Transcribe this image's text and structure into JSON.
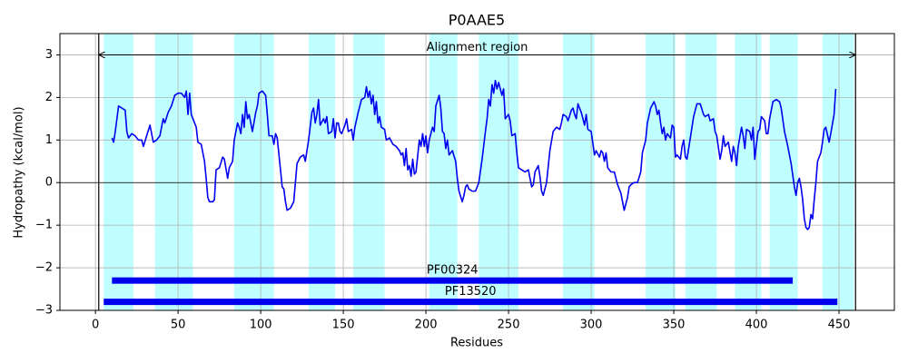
{
  "chart_data": {
    "type": "line",
    "title": "P0AAE5",
    "xlabel": "Residues",
    "ylabel": "Hydropathy (kcal/mol)",
    "xlim": [
      -21.5,
      483.5
    ],
    "ylim": [
      -3,
      3.5
    ],
    "xticks": [
      0,
      50,
      100,
      150,
      200,
      250,
      300,
      350,
      400,
      450
    ],
    "yticks": [
      {
        "value": -3,
        "label": "−3"
      },
      {
        "value": -2,
        "label": "−2"
      },
      {
        "value": -1,
        "label": "−1"
      },
      0,
      1,
      2,
      3
    ],
    "grid": true,
    "hline": 0,
    "line_color": "#0000ee",
    "x": [
      10,
      11,
      12,
      13,
      14,
      16,
      18,
      19,
      20,
      22,
      24,
      26,
      28,
      29,
      31,
      33,
      35,
      37,
      39,
      41,
      42,
      44,
      46,
      48,
      50,
      52,
      54,
      55,
      56,
      57,
      58,
      59,
      61,
      62,
      64,
      66,
      67,
      68,
      69,
      71,
      72,
      73,
      75,
      77,
      78,
      80,
      81,
      83,
      84,
      86,
      87,
      88,
      89,
      90,
      91,
      92,
      93,
      94,
      95,
      97,
      98,
      99,
      101,
      103,
      104,
      105,
      107,
      108,
      109,
      110,
      112,
      113,
      114,
      115,
      116,
      118,
      120,
      122,
      124,
      126,
      127,
      129,
      131,
      132,
      133,
      134,
      135,
      136,
      138,
      139,
      140,
      141,
      143,
      144,
      145,
      146,
      147,
      148,
      149,
      151,
      152,
      153,
      155,
      156,
      157,
      159,
      161,
      163,
      164,
      165,
      166,
      167,
      168,
      169,
      170,
      171,
      172,
      173,
      175,
      176,
      178,
      180,
      182,
      184,
      185,
      186,
      187,
      188,
      189,
      190,
      191,
      192,
      193,
      194,
      196,
      197,
      198,
      199,
      200,
      201,
      202,
      204,
      205,
      206,
      208,
      209,
      210,
      211,
      212,
      213,
      214,
      216,
      218,
      219,
      220,
      222,
      223,
      224,
      225,
      226,
      228,
      230,
      232,
      234,
      236,
      237,
      238,
      239,
      240,
      241,
      242,
      243,
      244,
      245,
      246,
      247,
      248,
      250,
      251,
      252,
      254,
      255,
      256,
      258,
      260,
      262,
      263,
      264,
      265,
      266,
      268,
      269,
      270,
      271,
      273,
      275,
      277,
      279,
      281,
      282,
      283,
      285,
      286,
      288,
      289,
      290,
      291,
      292,
      294,
      295,
      296,
      297,
      298,
      300,
      302,
      303,
      305,
      306,
      307,
      308,
      309,
      310,
      312,
      314,
      316,
      318,
      319,
      320,
      322,
      323,
      324,
      326,
      328,
      330,
      331,
      333,
      334,
      336,
      338,
      339,
      340,
      341,
      342,
      343,
      344,
      345,
      346,
      348,
      349,
      350,
      351,
      352,
      353,
      354,
      355,
      356,
      357,
      358,
      360,
      362,
      364,
      366,
      368,
      369,
      371,
      372,
      374,
      375,
      376,
      378,
      379,
      380,
      381,
      383,
      385,
      386,
      387,
      388,
      389,
      391,
      392,
      393,
      394,
      396,
      397,
      398,
      399,
      400,
      401,
      402,
      403,
      405,
      406,
      407,
      408,
      410,
      412,
      414,
      415,
      417,
      419,
      421,
      423,
      424,
      425,
      426,
      427,
      428,
      429,
      430,
      431,
      432,
      433,
      434,
      435,
      436,
      437,
      439,
      440,
      441,
      442,
      444,
      445,
      447,
      448
    ],
    "values": [
      1.05,
      0.95,
      1.2,
      1.5,
      1.8,
      1.75,
      1.7,
      1.2,
      1.05,
      1.15,
      1.1,
      1.0,
      1.0,
      0.85,
      1.1,
      1.35,
      0.95,
      1.0,
      1.1,
      1.5,
      1.4,
      1.65,
      1.8,
      2.05,
      2.1,
      2.1,
      2.0,
      2.15,
      1.6,
      2.1,
      1.6,
      1.5,
      1.3,
      0.95,
      0.9,
      0.5,
      0.1,
      -0.35,
      -0.45,
      -0.45,
      -0.4,
      0.3,
      0.35,
      0.6,
      0.55,
      0.1,
      0.35,
      0.5,
      1.0,
      1.4,
      1.3,
      1.15,
      1.6,
      1.3,
      1.9,
      1.5,
      1.6,
      1.4,
      1.2,
      1.65,
      1.8,
      2.1,
      2.15,
      2.05,
      1.6,
      1.1,
      1.1,
      0.9,
      1.15,
      1.05,
      0.3,
      -0.1,
      -0.15,
      -0.45,
      -0.65,
      -0.6,
      -0.45,
      0.45,
      0.6,
      0.65,
      0.5,
      1.0,
      1.65,
      1.75,
      1.4,
      1.6,
      1.95,
      1.35,
      1.5,
      1.4,
      1.55,
      1.15,
      1.2,
      1.5,
      1.05,
      1.4,
      1.4,
      1.2,
      1.15,
      1.35,
      1.5,
      1.2,
      1.25,
      1.0,
      1.3,
      1.65,
      1.95,
      2.0,
      2.25,
      2.0,
      2.15,
      1.85,
      2.05,
      1.6,
      1.9,
      1.4,
      1.55,
      1.3,
      1.25,
      1.0,
      1.05,
      0.9,
      0.85,
      0.75,
      0.65,
      0.7,
      0.4,
      0.8,
      0.3,
      0.4,
      0.15,
      0.55,
      0.2,
      0.25,
      1.0,
      0.85,
      1.15,
      0.85,
      1.1,
      0.7,
      1.0,
      1.3,
      1.2,
      1.8,
      2.05,
      1.75,
      1.2,
      1.15,
      0.8,
      1.0,
      0.65,
      0.75,
      0.5,
      0.1,
      -0.2,
      -0.45,
      -0.3,
      -0.1,
      -0.05,
      -0.15,
      -0.2,
      -0.2,
      0.0,
      0.55,
      1.2,
      1.5,
      1.95,
      1.8,
      2.3,
      2.1,
      2.4,
      2.2,
      2.35,
      2.2,
      2.05,
      2.2,
      1.5,
      1.6,
      1.45,
      1.1,
      1.15,
      0.7,
      0.35,
      0.3,
      0.25,
      0.3,
      0.1,
      -0.1,
      -0.05,
      0.25,
      0.4,
      0.15,
      -0.2,
      -0.3,
      0.0,
      0.75,
      1.2,
      1.3,
      1.25,
      1.4,
      1.6,
      1.55,
      1.45,
      1.7,
      1.75,
      1.6,
      1.5,
      1.85,
      1.65,
      1.5,
      1.35,
      1.6,
      1.25,
      1.2,
      0.65,
      0.75,
      0.6,
      0.75,
      0.7,
      0.5,
      0.7,
      0.35,
      0.25,
      0.25,
      -0.05,
      -0.25,
      -0.45,
      -0.65,
      -0.35,
      -0.1,
      -0.05,
      0.0,
      0.0,
      0.25,
      0.7,
      1.0,
      1.4,
      1.75,
      1.9,
      1.8,
      1.6,
      1.7,
      1.4,
      1.15,
      1.3,
      1.0,
      1.15,
      1.05,
      1.35,
      1.3,
      0.6,
      0.65,
      0.6,
      0.55,
      0.85,
      1.0,
      0.6,
      0.55,
      1.05,
      1.55,
      1.85,
      1.85,
      1.6,
      1.55,
      1.6,
      1.45,
      1.5,
      1.2,
      1.1,
      0.55,
      0.75,
      1.1,
      0.85,
      0.95,
      0.5,
      0.85,
      0.7,
      0.4,
      0.85,
      1.3,
      1.1,
      0.8,
      1.25,
      1.2,
      1.0,
      1.3,
      0.55,
      0.9,
      1.2,
      1.25,
      1.55,
      1.45,
      1.15,
      1.15,
      1.5,
      1.9,
      1.95,
      1.9,
      1.75,
      1.2,
      0.85,
      0.45,
      -0.1,
      -0.3,
      0.0,
      0.1,
      -0.1,
      -0.4,
      -0.85,
      -1.05,
      -1.1,
      -1.05,
      -0.75,
      -0.85,
      -0.4,
      0.0,
      0.5,
      0.7,
      0.95,
      1.25,
      1.3,
      0.95,
      1.15,
      1.6,
      2.2
    ],
    "region_color": "#bfffff",
    "regions": [
      {
        "start": 5,
        "end": 23
      },
      {
        "start": 36,
        "end": 59
      },
      {
        "start": 84,
        "end": 108
      },
      {
        "start": 129,
        "end": 145
      },
      {
        "start": 156,
        "end": 175
      },
      {
        "start": 202,
        "end": 219
      },
      {
        "start": 232,
        "end": 256
      },
      {
        "start": 283,
        "end": 302
      },
      {
        "start": 333,
        "end": 351
      },
      {
        "start": 357,
        "end": 376
      },
      {
        "start": 387,
        "end": 403
      },
      {
        "start": 408,
        "end": 425
      },
      {
        "start": 440,
        "end": 459
      }
    ],
    "alignment": {
      "label": "Alignment region",
      "start": 2,
      "end": 460,
      "y": 3
    },
    "domain_color": "#0000ee",
    "domains": [
      {
        "name": "PF00324",
        "start": 10,
        "end": 422,
        "y": -2.3
      },
      {
        "name": "PF13520",
        "start": 5,
        "end": 449,
        "y": -2.8
      }
    ]
  }
}
